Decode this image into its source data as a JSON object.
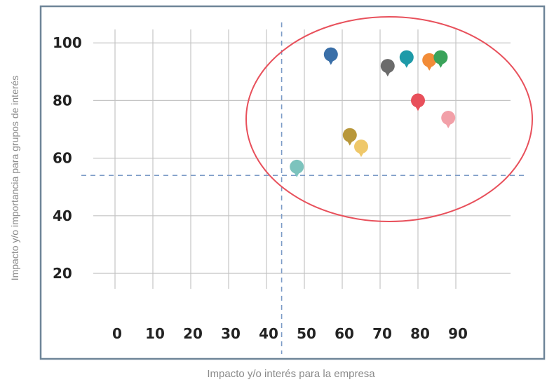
{
  "chart_data": {
    "type": "scatter",
    "title": "",
    "xlabel": "Impacto y/o interés para la empresa",
    "ylabel": "Impacto y/o importancia para grupos de interés",
    "x_ticks": [
      "0",
      "10",
      "20",
      "30",
      "40",
      "50",
      "60",
      "70",
      "80",
      "90"
    ],
    "y_ticks": [
      "100",
      "80",
      "60",
      "40",
      "20"
    ],
    "xlim": [
      0,
      90
    ],
    "ylim": [
      20,
      100
    ],
    "grid": true,
    "threshold_lines": {
      "x": 44,
      "y": 54
    },
    "highlight_ellipse": {
      "color": "#e8505b"
    },
    "points": [
      {
        "x": 48,
        "y": 57,
        "color": "#7cc3bd"
      },
      {
        "x": 57,
        "y": 96,
        "color": "#3a6fa8"
      },
      {
        "x": 62,
        "y": 68,
        "color": "#b8973a"
      },
      {
        "x": 65,
        "y": 64,
        "color": "#efc86a"
      },
      {
        "x": 72,
        "y": 92,
        "color": "#6b6b6b"
      },
      {
        "x": 77,
        "y": 95,
        "color": "#1e9aa8"
      },
      {
        "x": 80,
        "y": 80,
        "color": "#e8505b"
      },
      {
        "x": 83,
        "y": 94,
        "color": "#f28c38"
      },
      {
        "x": 86,
        "y": 95,
        "color": "#3aa35a"
      },
      {
        "x": 88,
        "y": 74,
        "color": "#f2a0a8"
      }
    ]
  },
  "frame": {
    "border_color": "#6e8598",
    "grid_color": "#c4c4c4",
    "threshold_color": "#7b9bc7"
  }
}
